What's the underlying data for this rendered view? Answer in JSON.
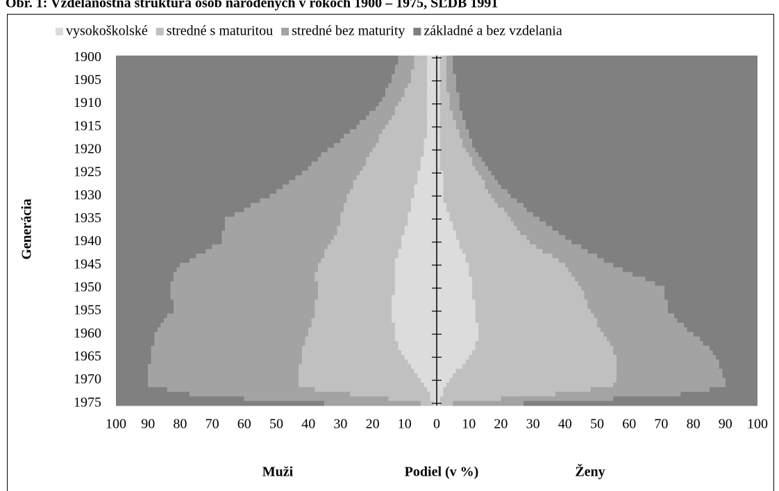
{
  "chart_data": {
    "type": "pyramid",
    "title": "Obr. 1: Vzdelanostná štruktúra osôb narodených v rokoch 1900 – 1975, SĽDB 1991",
    "ylabel": "Generácia",
    "xlabel": "Podiel (v %)",
    "left_label": "Muži",
    "right_label": "Ženy",
    "xlim": [
      -100,
      100
    ],
    "xticks": [
      {
        "value": -100,
        "label": "100"
      },
      {
        "value": -90,
        "label": "90"
      },
      {
        "value": -80,
        "label": "80"
      },
      {
        "value": -70,
        "label": "70"
      },
      {
        "value": -60,
        "label": "60"
      },
      {
        "value": -50,
        "label": "50"
      },
      {
        "value": -40,
        "label": "40"
      },
      {
        "value": -30,
        "label": "30"
      },
      {
        "value": -20,
        "label": "20"
      },
      {
        "value": -10,
        "label": "10"
      },
      0,
      10,
      20,
      30,
      40,
      50,
      60,
      70,
      80,
      90,
      100
    ],
    "categories": [
      1900,
      null,
      null,
      null,
      null,
      1905,
      null,
      null,
      null,
      null,
      1910,
      null,
      null,
      null,
      null,
      1915,
      null,
      null,
      null,
      null,
      1920,
      null,
      null,
      null,
      null,
      1925,
      null,
      null,
      null,
      null,
      1930,
      null,
      null,
      null,
      null,
      1935,
      null,
      null,
      null,
      null,
      1940,
      null,
      null,
      null,
      null,
      1945,
      null,
      null,
      null,
      null,
      1950,
      null,
      null,
      null,
      null,
      1955,
      null,
      null,
      null,
      null,
      1960,
      null,
      null,
      null,
      null,
      1965,
      null,
      null,
      null,
      null,
      1970,
      null,
      null,
      null,
      null,
      1975
    ],
    "legend": "top",
    "series": [
      {
        "name": "vysokoškolské",
        "color": "#dcdcdc",
        "men": [
          3,
          3,
          3,
          3,
          3,
          3,
          3,
          3,
          3,
          3,
          3,
          3,
          3,
          3,
          3,
          3,
          3,
          3,
          4,
          4,
          4,
          4,
          5,
          5,
          5,
          6,
          6,
          6,
          7,
          7,
          7,
          8,
          8,
          8,
          9,
          9,
          9,
          10,
          10,
          11,
          11,
          11,
          12,
          12,
          13,
          13,
          13,
          13,
          13,
          13,
          13,
          13,
          14,
          14,
          14,
          14,
          14,
          14,
          13,
          13,
          13,
          13,
          12,
          12,
          11,
          10,
          9,
          8,
          7,
          6,
          5,
          4,
          3,
          2,
          2,
          1
        ],
        "women": [
          1,
          1,
          1,
          1,
          1,
          1,
          1,
          1,
          1,
          1,
          1,
          1,
          1,
          1,
          1,
          1,
          1,
          1,
          1,
          1,
          1,
          1,
          1,
          1,
          1,
          2,
          2,
          2,
          2,
          2,
          2,
          2,
          3,
          3,
          4,
          4,
          5,
          5,
          6,
          6,
          7,
          7,
          8,
          9,
          9,
          10,
          10,
          10,
          11,
          11,
          11,
          11,
          11,
          12,
          12,
          12,
          12,
          12,
          13,
          13,
          13,
          13,
          12,
          12,
          11,
          10,
          9,
          8,
          6,
          5,
          4,
          3,
          2,
          2,
          1,
          1
        ]
      },
      {
        "name": "stredné s maturitou",
        "color": "#c0c0c0",
        "men": [
          4,
          4,
          4,
          5,
          5,
          5,
          6,
          7,
          7,
          8,
          9,
          10,
          10,
          11,
          12,
          13,
          14,
          15,
          14,
          15,
          16,
          17,
          17,
          17,
          18,
          18,
          19,
          20,
          19,
          20,
          21,
          20,
          21,
          21,
          21,
          21,
          21,
          21,
          21,
          21,
          22,
          23,
          23,
          23,
          23,
          24,
          24,
          25,
          25,
          24,
          24,
          24,
          23,
          24,
          24,
          24,
          24,
          25,
          26,
          27,
          27,
          28,
          29,
          30,
          31,
          32,
          33,
          35,
          36,
          37,
          38,
          39,
          35,
          25,
          13,
          4
        ],
        "women": [
          2,
          2,
          2,
          2,
          2,
          2,
          2,
          2,
          3,
          3,
          3,
          3,
          4,
          4,
          5,
          5,
          6,
          6,
          7,
          7,
          8,
          9,
          10,
          10,
          11,
          11,
          12,
          13,
          13,
          14,
          15,
          16,
          16,
          18,
          18,
          19,
          19,
          20,
          20,
          22,
          22,
          24,
          25,
          27,
          29,
          30,
          31,
          32,
          32,
          33,
          34,
          35,
          35,
          35,
          35,
          36,
          37,
          38,
          37,
          38,
          39,
          40,
          42,
          43,
          44,
          46,
          47,
          48,
          50,
          51,
          52,
          52,
          46,
          35,
          19,
          4
        ]
      },
      {
        "name": "stredné bez maturity",
        "color": "#a3a3a3",
        "men": [
          5,
          5,
          6,
          5,
          6,
          6,
          6,
          6,
          6,
          6,
          6,
          6,
          8,
          8,
          9,
          9,
          10,
          11,
          12,
          13,
          14,
          15,
          15,
          17,
          17,
          18,
          19,
          20,
          22,
          23,
          24,
          27,
          29,
          31,
          33,
          36,
          36,
          35,
          36,
          35,
          34,
          36,
          37,
          40,
          41,
          43,
          44,
          44,
          44,
          46,
          46,
          46,
          46,
          44,
          44,
          44,
          46,
          46,
          47,
          47,
          48,
          47,
          47,
          47,
          47,
          47,
          47,
          47,
          47,
          47,
          47,
          47,
          46,
          50,
          45,
          30
        ],
        "women": [
          2,
          2,
          2,
          2,
          3,
          3,
          3,
          3,
          3,
          3,
          3,
          3,
          3,
          3,
          3,
          3,
          3,
          3,
          3,
          3,
          3,
          3,
          3,
          4,
          4,
          4,
          4,
          4,
          5,
          6,
          6,
          7,
          8,
          7,
          8,
          9,
          10,
          11,
          12,
          12,
          13,
          14,
          14,
          14,
          14,
          15,
          17,
          19,
          22,
          24,
          26,
          25,
          25,
          25,
          25,
          24,
          25,
          25,
          27,
          27,
          28,
          29,
          29,
          30,
          31,
          31,
          32,
          32,
          33,
          33,
          34,
          35,
          37,
          39,
          35,
          22
        ]
      },
      {
        "name": "základné a bez vzdelania",
        "color": "#808080",
        "men": [
          88,
          88,
          87,
          87,
          86,
          86,
          85,
          84,
          84,
          83,
          82,
          81,
          79,
          78,
          76,
          75,
          73,
          71,
          70,
          68,
          66,
          64,
          63,
          61,
          60,
          58,
          56,
          54,
          52,
          50,
          48,
          45,
          42,
          40,
          37,
          34,
          34,
          34,
          33,
          33,
          33,
          30,
          28,
          25,
          23,
          20,
          19,
          18,
          18,
          17,
          17,
          17,
          17,
          18,
          18,
          18,
          16,
          15,
          14,
          13,
          12,
          12,
          12,
          11,
          11,
          11,
          11,
          10,
          10,
          10,
          10,
          10,
          16,
          23,
          40,
          65
        ],
        "women": [
          95,
          95,
          95,
          95,
          94,
          94,
          94,
          94,
          93,
          93,
          93,
          93,
          92,
          92,
          91,
          91,
          90,
          90,
          89,
          89,
          88,
          87,
          86,
          85,
          84,
          83,
          82,
          81,
          80,
          78,
          77,
          75,
          73,
          72,
          70,
          68,
          66,
          64,
          62,
          60,
          58,
          55,
          53,
          50,
          48,
          45,
          42,
          39,
          35,
          32,
          29,
          29,
          29,
          28,
          28,
          28,
          26,
          25,
          23,
          22,
          20,
          18,
          17,
          15,
          14,
          13,
          12,
          12,
          11,
          11,
          10,
          10,
          15,
          24,
          45,
          73
        ]
      }
    ]
  }
}
